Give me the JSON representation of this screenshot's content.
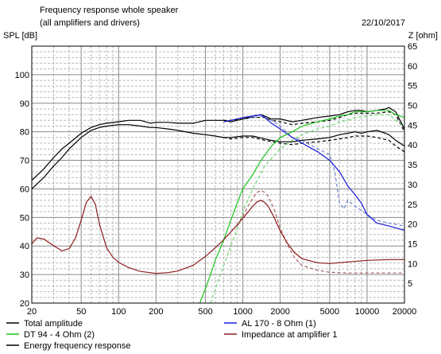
{
  "chart_data": {
    "type": "line",
    "title": "Frequency response whole speaker",
    "subtitle": "(all amplifiers and drivers)",
    "date": "22/10/2017",
    "ylabel_left": "SPL [dB]",
    "ylabel_right": "Z [ohm]",
    "xscale": "log",
    "xlim": [
      20,
      20000
    ],
    "ylim_left": [
      20,
      110
    ],
    "ylim_right": [
      0,
      65
    ],
    "grid": true,
    "legend_position": "bottom",
    "xticks": [
      {
        "v": 20,
        "t": "20"
      },
      {
        "v": 50,
        "t": "50"
      },
      {
        "v": 100,
        "t": "100"
      },
      {
        "v": 200,
        "t": "200"
      },
      {
        "v": 500,
        "t": "500"
      },
      {
        "v": 1000,
        "t": "1000"
      },
      {
        "v": 2000,
        "t": "2000"
      },
      {
        "v": 5000,
        "t": "5000"
      },
      {
        "v": 10000,
        "t": "10000"
      },
      {
        "v": 20000,
        "t": "20000"
      }
    ],
    "yticks_left": [
      "20",
      "30",
      "40",
      "50",
      "60",
      "70",
      "80",
      "90",
      "100"
    ],
    "yticks_right": [
      "5",
      "10",
      "15",
      "20",
      "25",
      "30",
      "35",
      "40",
      "45",
      "50",
      "55",
      "60",
      "65"
    ],
    "series": [
      {
        "name": "Total amplitude",
        "color": "#000000",
        "dash": false,
        "axis": "left",
        "x": [
          20,
          25,
          30,
          35,
          40,
          50,
          60,
          70,
          80,
          100,
          120,
          150,
          180,
          200,
          250,
          300,
          400,
          500,
          600,
          700,
          800,
          1000,
          1200,
          1400,
          1500,
          1700,
          2000,
          2500,
          3000,
          4000,
          5000,
          6000,
          7000,
          8000,
          9000,
          10000,
          12000,
          14000,
          15000,
          17000,
          20000
        ],
        "y": [
          63,
          67,
          71,
          74,
          76,
          79.5,
          81.5,
          82.5,
          83,
          83.5,
          84,
          84,
          83,
          83.3,
          83.3,
          83,
          83,
          84,
          84,
          84,
          83.5,
          84.5,
          85.5,
          86,
          85.5,
          84.5,
          84.5,
          83.5,
          84,
          85,
          85.5,
          86,
          87,
          87.5,
          87.5,
          87,
          87.5,
          88,
          88.5,
          87,
          81
        ]
      },
      {
        "name": "Energy frequency response",
        "color": "#000000",
        "dash": false,
        "axis": "left",
        "x": [
          20,
          25,
          30,
          35,
          40,
          50,
          60,
          70,
          80,
          100,
          120,
          150,
          180,
          200,
          250,
          300,
          400,
          500,
          600,
          700,
          800,
          1000,
          1200,
          1500,
          1700,
          2000,
          2500,
          3000,
          4000,
          5000,
          6000,
          7000,
          8000,
          9000,
          10000,
          12000,
          14000,
          15000,
          17000,
          20000
        ],
        "y": [
          60,
          64,
          68,
          71,
          74,
          78,
          80.5,
          81.5,
          82,
          82.5,
          82.5,
          82,
          81.5,
          81.5,
          81,
          80.5,
          79.5,
          79,
          78.5,
          78,
          78,
          78.5,
          78.5,
          77.5,
          77,
          76.5,
          76.5,
          77,
          77.5,
          78,
          79,
          79.5,
          80,
          79.5,
          80,
          80.5,
          79.5,
          79,
          77,
          75
        ]
      },
      {
        "name": "AL 170 - 8 Ohm (1)",
        "color": "#1a1adc",
        "dash": false,
        "axis": "left",
        "x": [
          700,
          800,
          1000,
          1200,
          1400,
          1500,
          1700,
          2000,
          2500,
          3000,
          4000,
          5000,
          6000,
          7000,
          8000,
          9000,
          10000,
          12000,
          15000,
          20000
        ],
        "y": [
          83.5,
          84,
          85,
          85.5,
          86,
          85,
          83,
          81,
          78,
          76,
          73,
          70,
          66,
          61,
          58,
          55,
          51,
          48,
          47,
          45.5
        ]
      },
      {
        "name": "DT 94 - 4 Ohm (2)",
        "color": "#1cc41c",
        "dash": false,
        "axis": "left",
        "x": [
          450,
          500,
          550,
          600,
          700,
          800,
          900,
          1000,
          1200,
          1400,
          1700,
          2000,
          2500,
          3000,
          4000,
          5000,
          6000,
          7000,
          8000,
          10000,
          12000,
          15000,
          17000,
          20000
        ],
        "y": [
          20,
          25,
          30,
          35,
          42,
          49,
          55,
          60,
          65,
          70,
          75,
          78,
          80,
          82,
          83.5,
          84.5,
          85.5,
          86,
          87,
          87,
          87.5,
          87.5,
          86,
          85
        ]
      },
      {
        "name": "Impedance at amplifier 1",
        "color": "#8b1a1a",
        "dash": false,
        "axis": "right",
        "x": [
          20,
          22,
          25,
          30,
          35,
          40,
          45,
          50,
          55,
          60,
          65,
          70,
          80,
          90,
          100,
          120,
          150,
          200,
          250,
          300,
          400,
          500,
          600,
          700,
          800,
          900,
          1000,
          1100,
          1200,
          1300,
          1400,
          1500,
          1600,
          1800,
          2000,
          2300,
          2600,
          3000,
          4000,
          5000,
          7000,
          10000,
          15000,
          20000
        ],
        "y": [
          15,
          16.5,
          16.2,
          14.5,
          13.2,
          13.8,
          16.5,
          21,
          25.5,
          27,
          25,
          20,
          14,
          11.6,
          10.3,
          9,
          8,
          7.5,
          7.7,
          8.1,
          9.6,
          11.8,
          14,
          16,
          18,
          19.8,
          21.5,
          23,
          24.5,
          25.6,
          26,
          25.5,
          24.5,
          21.5,
          18.2,
          15,
          12.8,
          11.2,
          10.2,
          10,
          10.4,
          10.8,
          11,
          11
        ]
      },
      {
        "name": "Total amplitude",
        "color": "#000000",
        "dash": true,
        "axis": "left",
        "x": [
          700,
          800,
          1000,
          1200,
          1500,
          1700,
          2000,
          2500,
          3000,
          4000,
          5000,
          6000,
          7000,
          8000,
          10000,
          12000,
          15000,
          17000,
          20000
        ],
        "y": [
          84,
          84,
          84.5,
          85,
          85,
          84,
          83.5,
          82.5,
          83,
          83.5,
          84,
          85,
          86,
          86.5,
          86.5,
          86.5,
          87,
          86,
          80
        ]
      },
      {
        "name": "Energy frequency response",
        "color": "#000000",
        "dash": true,
        "axis": "left",
        "x": [
          700,
          800,
          1000,
          1200,
          1500,
          2000,
          2500,
          3000,
          4000,
          5000,
          6000,
          7000,
          8000,
          10000,
          12000,
          15000,
          17000,
          20000
        ],
        "y": [
          78,
          77.5,
          78,
          78,
          77,
          76,
          75.5,
          76,
          76.5,
          77,
          77.5,
          78,
          78.5,
          78.5,
          78,
          77,
          75,
          73
        ]
      },
      {
        "name": "AL 170 - 8 Ohm (1)",
        "color": "#6b7fd8",
        "dash": true,
        "axis": "left",
        "x": [
          1000,
          1200,
          1400,
          1500,
          1700,
          2000,
          2500,
          3000,
          4000,
          5000,
          5500,
          6000,
          6500,
          7000,
          8000,
          10000,
          12000,
          15000,
          20000
        ],
        "y": [
          84.5,
          85,
          85.5,
          85,
          84,
          82,
          78,
          77,
          74,
          72,
          66,
          55,
          53,
          56,
          54,
          51,
          49,
          48,
          47
        ]
      },
      {
        "name": "DT 94 - 4 Ohm (2)",
        "color": "#6bd86b",
        "dash": true,
        "axis": "left",
        "x": [
          550,
          600,
          700,
          800,
          900,
          1000,
          1200,
          1500,
          2000,
          2500,
          3000,
          4000,
          5000,
          6000,
          7000,
          8000,
          10000,
          12000,
          15000,
          17000,
          20000
        ],
        "y": [
          20,
          25,
          33,
          40,
          46,
          52,
          60,
          68,
          74,
          77,
          79,
          81,
          82,
          83.5,
          84,
          85,
          85.5,
          86,
          86,
          84,
          82
        ]
      },
      {
        "name": "Impedance at amplifier 1",
        "color": "#a86060",
        "dash": true,
        "axis": "right",
        "x": [
          900,
          1000,
          1100,
          1200,
          1300,
          1400,
          1500,
          1600,
          1800,
          2000,
          2300,
          2600,
          3000,
          4000,
          5000,
          7000,
          10000,
          15000,
          20000
        ],
        "y": [
          19.5,
          22,
          24.5,
          26.5,
          28,
          28.5,
          28,
          27,
          23.5,
          19,
          14.5,
          11.5,
          9.5,
          8.3,
          7.8,
          7.6,
          7.6,
          7.6,
          7.6
        ]
      }
    ],
    "legend": [
      {
        "label": "Total amplitude",
        "color": "#000000"
      },
      {
        "label": "AL 170 - 8 Ohm (1)",
        "color": "#1a1adc"
      },
      {
        "label": "DT 94 - 4 Ohm (2)",
        "color": "#1cc41c"
      },
      {
        "label": "Impedance at amplifier 1",
        "color": "#8b1a1a"
      },
      {
        "label": "Energy frequency response",
        "color": "#000000"
      }
    ]
  }
}
